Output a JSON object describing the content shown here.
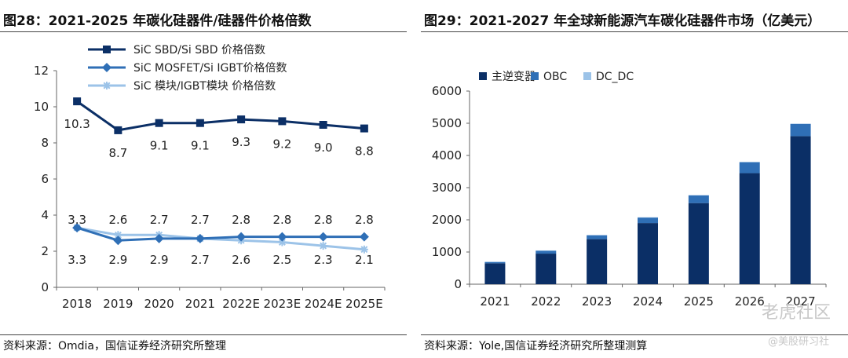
{
  "left": {
    "title": "图28：2021-2025 年碳化硅器件/硅器件价格倍数",
    "source": "资料来源：Omdia，国信证券经济研究所整理"
  },
  "right": {
    "title": "图29：2021-2027 年全球新能源汽车碳化硅器件市场（亿美元）",
    "source": "资料来源：Yole,国信证券经济研究所整理测算"
  },
  "watermark": {
    "main": "老虎社区",
    "sub": "@美股研习社"
  },
  "colors": {
    "navy": "#0b2f66",
    "mid": "#2f6fb6",
    "light": "#9cc3e8"
  },
  "chart_data": [
    {
      "type": "line",
      "categories": [
        "2018",
        "2019",
        "2020",
        "2021",
        "2022E",
        "2023E",
        "2024E",
        "2025E"
      ],
      "ylim": [
        0,
        12
      ],
      "yticks": [
        "0",
        "2",
        "4",
        "6",
        "8",
        "10",
        "12"
      ],
      "legend_position": "top",
      "series": [
        {
          "name": "SiC SBD/Si SBD 价格倍数",
          "marker": "square",
          "color": "#0b2f66",
          "values": [
            10.3,
            8.7,
            9.1,
            9.1,
            9.3,
            9.2,
            9.0,
            8.8
          ],
          "labels": [
            "10.3",
            "8.7",
            "9.1",
            "9.1",
            "9.3",
            "9.2",
            "9.0",
            "8.8"
          ]
        },
        {
          "name": "SiC MOSFET/Si IGBT价格倍数",
          "marker": "diamond",
          "color": "#2f6fb6",
          "values": [
            3.3,
            2.6,
            2.7,
            2.7,
            2.8,
            2.8,
            2.8,
            2.8
          ],
          "labels": [
            "3.3",
            "2.6",
            "2.7",
            "2.7",
            "2.8",
            "2.8",
            "2.8",
            "2.8"
          ]
        },
        {
          "name": "SiC 模块/IGBT模块 价格倍数",
          "marker": "star",
          "color": "#9cc3e8",
          "values": [
            3.3,
            2.9,
            2.9,
            2.7,
            2.6,
            2.5,
            2.3,
            2.1
          ],
          "labels": [
            "3.3",
            "2.9",
            "2.9",
            "2.7",
            "2.6",
            "2.5",
            "2.3",
            "2.1"
          ]
        }
      ]
    },
    {
      "type": "bar",
      "stacked": true,
      "categories": [
        "2021",
        "2022",
        "2023",
        "2024",
        "2025",
        "2026",
        "2027"
      ],
      "ylim": [
        0,
        6000
      ],
      "yticks": [
        "0",
        "1000",
        "2000",
        "3000",
        "4000",
        "5000",
        "6000"
      ],
      "legend_position": "top-left",
      "series": [
        {
          "name": "主逆变器",
          "color": "#0b2f66",
          "values": [
            650,
            950,
            1400,
            1900,
            2520,
            3450,
            4600
          ]
        },
        {
          "name": "OBC",
          "color": "#2f6fb6",
          "values": [
            40,
            90,
            120,
            170,
            240,
            340,
            380
          ]
        },
        {
          "name": "DC_DC",
          "color": "#9cc3e8",
          "values": [
            10,
            10,
            10,
            10,
            10,
            10,
            10
          ]
        }
      ]
    }
  ]
}
